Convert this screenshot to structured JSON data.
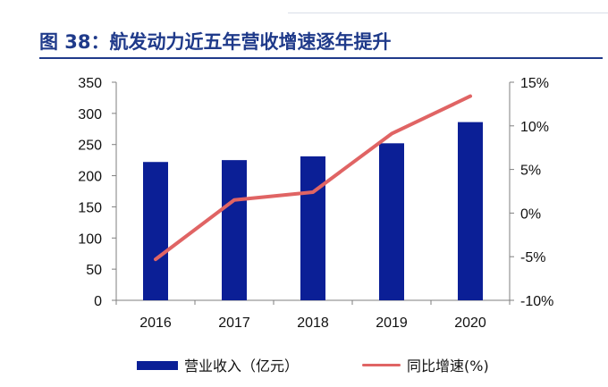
{
  "title": "图 38：航发动力近五年营收增速逐年提升",
  "colors": {
    "bar": "#0b1f96",
    "line": "#e06464",
    "title": "#1f3a8a"
  },
  "chart_data": {
    "type": "bar",
    "categories": [
      "2016",
      "2017",
      "2018",
      "2019",
      "2020"
    ],
    "series": [
      {
        "name": "营业收入（亿元）",
        "type": "bar",
        "axis": "left",
        "values": [
          222,
          225,
          231,
          252,
          286
        ]
      },
      {
        "name": "同比增速(%)",
        "type": "line",
        "axis": "right",
        "values": [
          -5.3,
          1.5,
          2.4,
          9.1,
          13.4
        ]
      }
    ],
    "ylim": [
      0,
      350
    ],
    "y_ticks": [
      "0",
      "50",
      "100",
      "150",
      "200",
      "250",
      "300",
      "350"
    ],
    "y2lim": [
      -10,
      15
    ],
    "y2_ticks": [
      "-10%",
      "-5%",
      "0%",
      "5%",
      "10%",
      "15%"
    ],
    "grid": false,
    "legend": "bottom"
  }
}
